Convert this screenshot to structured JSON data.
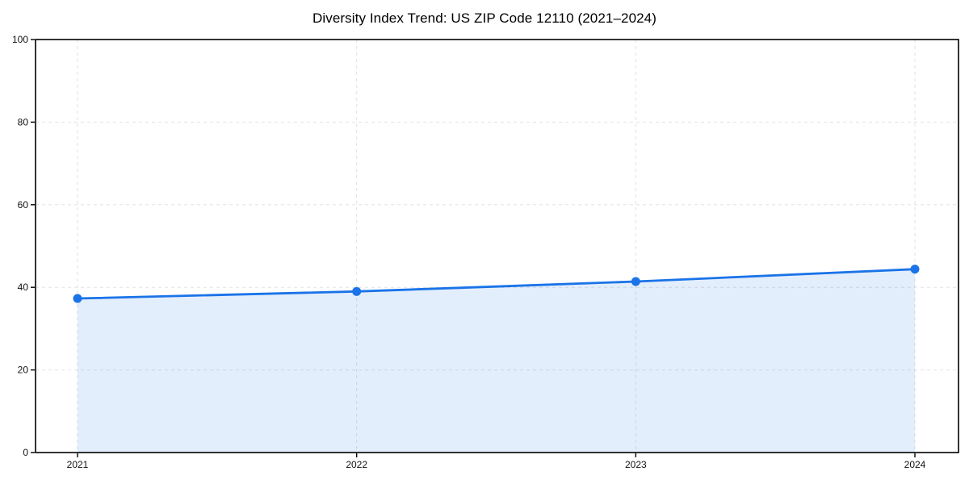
{
  "chart_data": {
    "type": "area",
    "title": "Diversity Index Trend: US ZIP Code 12110 (2021–2024)",
    "x": [
      2021,
      2022,
      2023,
      2024
    ],
    "values": [
      37.3,
      39.0,
      41.4,
      44.4
    ],
    "xlabel": "",
    "ylabel": "",
    "ylim": [
      0,
      100
    ],
    "yticks": [
      0,
      20,
      40,
      60,
      80,
      100
    ],
    "xticklabels": [
      "2021",
      "2022",
      "2023",
      "2024"
    ],
    "yticklabels": [
      "0",
      "20",
      "40",
      "60",
      "80",
      "100"
    ],
    "grid": true,
    "grid_style": "dashed",
    "legend_position": "none",
    "colors": {
      "line": "#1a73e8",
      "marker": "#1a73e8",
      "area_fill": "#1a73e8",
      "area_fill_opacity": 0.12,
      "grid": "#e2e2e2",
      "axis": "#000000",
      "tick_label": "#111111",
      "title": "#000000",
      "background": "#ffffff"
    }
  }
}
